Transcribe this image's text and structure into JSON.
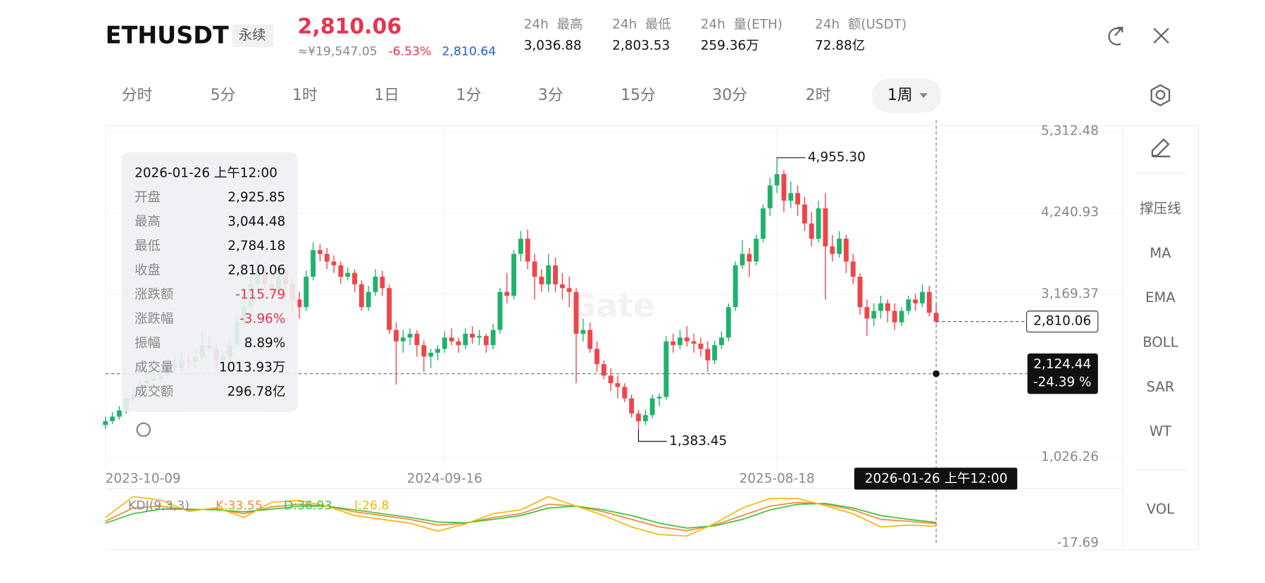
{
  "header": {
    "symbol": "ETHUSDT",
    "badge": "永续",
    "price": "2,810.06",
    "cny": "≈¥19,547.05",
    "change": "-6.53%",
    "mark_price": "2,810.64",
    "stats": [
      {
        "label": "24h  最高",
        "value": "3,036.88"
      },
      {
        "label": "24h  最低",
        "value": "2,803.53"
      },
      {
        "label": "24h  量(ETH)",
        "value": "259.36万"
      },
      {
        "label": "24h  额(USDT)",
        "value": "72.88亿"
      }
    ]
  },
  "timeframes": [
    "分时",
    "5分",
    "1时",
    "1日",
    "1分",
    "3分",
    "15分",
    "30分",
    "2时",
    "1周"
  ],
  "tools": [
    "撑压线",
    "MA",
    "EMA",
    "BOLL",
    "SAR",
    "WT",
    "VOL"
  ],
  "watermark": "Gate",
  "tooltip": {
    "time": "2026-01-26 上午12:00",
    "rows": [
      [
        "开盘",
        "2,925.85"
      ],
      [
        "最高",
        "3,044.48"
      ],
      [
        "最低",
        "2,784.18"
      ],
      [
        "收盘",
        "2,810.06"
      ],
      [
        "涨跌额",
        "-115.79"
      ],
      [
        "涨跌幅",
        "-3.96%"
      ],
      [
        "振幅",
        "8.89%"
      ],
      [
        "成交量",
        "1013.93万"
      ],
      [
        "成交额",
        "296.78亿"
      ]
    ]
  },
  "chart_data": [
    {
      "type": "candlestick",
      "up_color": "#20b26c",
      "down_color": "#ef454a",
      "xlim": [
        0,
        147
      ],
      "ylim": [
        877,
        5387
      ],
      "xticks": [
        {
          "value": 0,
          "label": "2023-10-09"
        },
        {
          "value": 49,
          "label": "2024-09-16"
        },
        {
          "value": 97,
          "label": "2025-08-18"
        }
      ],
      "yticks": [
        {
          "value": 5312.48,
          "label": "5,312.48"
        },
        {
          "value": 4240.93,
          "label": "4,240.93"
        },
        {
          "value": 3169.37,
          "label": "3,169.37"
        },
        {
          "value": 1026.26,
          "label": "1,026.26"
        }
      ],
      "candles": [
        [
          1450,
          1560,
          1400,
          1500
        ],
        [
          1500,
          1620,
          1460,
          1560
        ],
        [
          1560,
          1700,
          1520,
          1640
        ],
        [
          1640,
          1860,
          1600,
          1800
        ],
        [
          1800,
          1930,
          1760,
          1850
        ],
        [
          1850,
          2080,
          1800,
          2000
        ],
        [
          2000,
          2120,
          1940,
          2030
        ],
        [
          2030,
          2140,
          1960,
          2060
        ],
        [
          2060,
          2180,
          2000,
          2100
        ],
        [
          2100,
          2330,
          2050,
          2250
        ],
        [
          2250,
          2340,
          2140,
          2200
        ],
        [
          2200,
          2400,
          2150,
          2300
        ],
        [
          2300,
          2380,
          2200,
          2280
        ],
        [
          2280,
          2450,
          2200,
          2350
        ],
        [
          2350,
          2700,
          2300,
          2500
        ],
        [
          2500,
          2620,
          2400,
          2450
        ],
        [
          2450,
          2520,
          2180,
          2300
        ],
        [
          2300,
          2420,
          2220,
          2350
        ],
        [
          2350,
          2560,
          2300,
          2500
        ],
        [
          2500,
          2900,
          2460,
          2800
        ],
        [
          2800,
          3100,
          2760,
          3000
        ],
        [
          3000,
          3450,
          2950,
          3300
        ],
        [
          3300,
          3620,
          3200,
          3500
        ],
        [
          3500,
          3580,
          3150,
          3300
        ],
        [
          3300,
          3400,
          3050,
          3200
        ],
        [
          3200,
          3520,
          3150,
          3450
        ],
        [
          3450,
          3520,
          3200,
          3300
        ],
        [
          3300,
          3380,
          2950,
          3100
        ],
        [
          3100,
          3200,
          2850,
          3000
        ],
        [
          3000,
          3480,
          2950,
          3400
        ],
        [
          3400,
          3850,
          3350,
          3750
        ],
        [
          3750,
          3830,
          3600,
          3700
        ],
        [
          3700,
          3780,
          3500,
          3600
        ],
        [
          3600,
          3680,
          3450,
          3550
        ],
        [
          3550,
          3600,
          3300,
          3400
        ],
        [
          3400,
          3520,
          3350,
          3450
        ],
        [
          3450,
          3500,
          3200,
          3300
        ],
        [
          3300,
          3350,
          2950,
          3000
        ],
        [
          3000,
          3280,
          2950,
          3200
        ],
        [
          3200,
          3500,
          3150,
          3400
        ],
        [
          3400,
          3480,
          3150,
          3250
        ],
        [
          3250,
          3300,
          2650,
          2700
        ],
        [
          2700,
          2800,
          1980,
          2550
        ],
        [
          2550,
          2700,
          2400,
          2600
        ],
        [
          2600,
          2720,
          2500,
          2650
        ],
        [
          2650,
          2700,
          2350,
          2500
        ],
        [
          2500,
          2560,
          2150,
          2350
        ],
        [
          2350,
          2450,
          2200,
          2400
        ],
        [
          2400,
          2500,
          2300,
          2450
        ],
        [
          2450,
          2680,
          2400,
          2600
        ],
        [
          2600,
          2720,
          2500,
          2550
        ],
        [
          2550,
          2600,
          2400,
          2500
        ],
        [
          2500,
          2720,
          2450,
          2650
        ],
        [
          2650,
          2750,
          2520,
          2600
        ],
        [
          2600,
          2700,
          2500,
          2620
        ],
        [
          2620,
          2650,
          2400,
          2500
        ],
        [
          2500,
          2780,
          2450,
          2700
        ],
        [
          2700,
          3250,
          2650,
          3200
        ],
        [
          3200,
          3450,
          3050,
          3150
        ],
        [
          3150,
          3750,
          3100,
          3700
        ],
        [
          3700,
          4000,
          3600,
          3900
        ],
        [
          3900,
          4020,
          3500,
          3600
        ],
        [
          3600,
          3700,
          3100,
          3400
        ],
        [
          3400,
          3500,
          3200,
          3300
        ],
        [
          3300,
          3700,
          3200,
          3550
        ],
        [
          3550,
          3650,
          3200,
          3300
        ],
        [
          3300,
          3450,
          3100,
          3250
        ],
        [
          3250,
          3400,
          3000,
          3200
        ],
        [
          3200,
          3250,
          2000,
          2650
        ],
        [
          2650,
          2850,
          2550,
          2700
        ],
        [
          2700,
          2800,
          2400,
          2450
        ],
        [
          2450,
          2550,
          2150,
          2250
        ],
        [
          2250,
          2300,
          2050,
          2100
        ],
        [
          2100,
          2200,
          1900,
          2000
        ],
        [
          2000,
          2100,
          1800,
          1950
        ],
        [
          1950,
          2000,
          1750,
          1800
        ],
        [
          1800,
          1850,
          1550,
          1600
        ],
        [
          1600,
          1650,
          1383.45,
          1500
        ],
        [
          1500,
          1650,
          1450,
          1580
        ],
        [
          1580,
          1850,
          1540,
          1800
        ],
        [
          1800,
          1860,
          1700,
          1820
        ],
        [
          1820,
          2620,
          1780,
          2550
        ],
        [
          2550,
          2650,
          2400,
          2500
        ],
        [
          2500,
          2700,
          2450,
          2600
        ],
        [
          2600,
          2750,
          2480,
          2550
        ],
        [
          2550,
          2650,
          2400,
          2520
        ],
        [
          2520,
          2600,
          2350,
          2450
        ],
        [
          2450,
          2550,
          2150,
          2300
        ],
        [
          2300,
          2560,
          2250,
          2500
        ],
        [
          2500,
          2680,
          2450,
          2600
        ],
        [
          2600,
          3050,
          2550,
          3000
        ],
        [
          3000,
          3600,
          2950,
          3550
        ],
        [
          3550,
          3880,
          3500,
          3700
        ],
        [
          3700,
          3780,
          3400,
          3600
        ],
        [
          3600,
          3950,
          3550,
          3900
        ],
        [
          3900,
          4350,
          3850,
          4300
        ],
        [
          4300,
          4700,
          4200,
          4600
        ],
        [
          4600,
          4955.3,
          4500,
          4750
        ],
        [
          4750,
          4800,
          4250,
          4400
        ],
        [
          4400,
          4650,
          4300,
          4500
        ],
        [
          4500,
          4600,
          4200,
          4350
        ],
        [
          4350,
          4450,
          4000,
          4100
        ],
        [
          4100,
          4250,
          3800,
          3900
        ],
        [
          3900,
          4400,
          3850,
          4300
        ],
        [
          4300,
          4500,
          3100,
          3800
        ],
        [
          3800,
          3950,
          3600,
          3700
        ],
        [
          3700,
          4000,
          3650,
          3900
        ],
        [
          3900,
          3950,
          3450,
          3600
        ],
        [
          3600,
          3700,
          3300,
          3400
        ],
        [
          3400,
          3450,
          2900,
          3000
        ],
        [
          3000,
          3100,
          2620,
          2850
        ],
        [
          2850,
          3050,
          2750,
          2950
        ],
        [
          2950,
          3150,
          2850,
          3050
        ],
        [
          3050,
          3100,
          2800,
          2950
        ],
        [
          2950,
          3050,
          2700,
          2800
        ],
        [
          2800,
          3000,
          2750,
          2950
        ],
        [
          2950,
          3150,
          2900,
          3100
        ],
        [
          3100,
          3180,
          2950,
          3050
        ],
        [
          3050,
          3300,
          3000,
          3200
        ],
        [
          3200,
          3280,
          2880,
          2925.85
        ],
        [
          2925.85,
          3044.48,
          2784.18,
          2810.06
        ]
      ],
      "annotations": [
        {
          "index": 97,
          "value": 4955.3,
          "label": "4,955.30"
        },
        {
          "index": 77,
          "value": 1383.45,
          "label": "1,383.45"
        }
      ],
      "last_price": {
        "value": 2810.06,
        "label": "2,810.06"
      },
      "crosshair": {
        "index": 120,
        "value": 2124.44,
        "label": "2,124.44",
        "change": "-24.39 %",
        "time": "2026-01-26 上午12:00"
      }
    },
    {
      "type": "line",
      "title": "KDJ(9,3,3)",
      "xlim": [
        0,
        147
      ],
      "ylim": [
        -17.69,
        115
      ],
      "yticks": [
        -17.69
      ],
      "x": [
        0,
        4,
        8,
        12,
        16,
        20,
        24,
        28,
        32,
        36,
        40,
        44,
        48,
        52,
        56,
        60,
        64,
        68,
        72,
        76,
        80,
        84,
        88,
        92,
        96,
        100,
        104,
        108,
        112,
        116,
        120
      ],
      "series": [
        {
          "name": "K:33.55",
          "color": "#f08a3c",
          "values": [
            40,
            75,
            80,
            70,
            72,
            60,
            78,
            85,
            80,
            65,
            55,
            45,
            30,
            35,
            50,
            60,
            85,
            80,
            65,
            45,
            25,
            15,
            30,
            55,
            80,
            90,
            85,
            70,
            45,
            40,
            33.55
          ]
        },
        {
          "name": "D:36.93",
          "color": "#3fc43a",
          "values": [
            35,
            60,
            72,
            72,
            70,
            65,
            72,
            80,
            80,
            70,
            60,
            50,
            38,
            36,
            45,
            55,
            75,
            80,
            70,
            55,
            35,
            22,
            28,
            45,
            70,
            85,
            87,
            75,
            55,
            45,
            36.93
          ]
        },
        {
          "name": "J:26.8",
          "color": "#f0b90b",
          "values": [
            50,
            105,
            96,
            66,
            76,
            50,
            90,
            95,
            80,
            55,
            45,
            35,
            14,
            33,
            60,
            70,
            105,
            80,
            55,
            25,
            5,
            1,
            34,
            75,
            100,
            100,
            81,
            60,
            25,
            30,
            26.8
          ]
        }
      ]
    }
  ]
}
